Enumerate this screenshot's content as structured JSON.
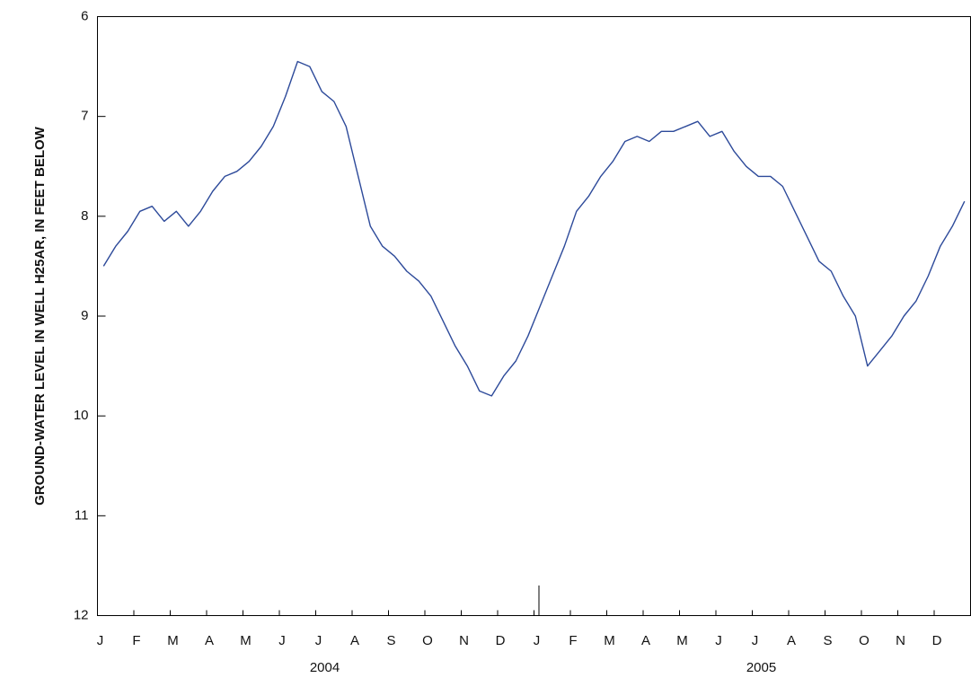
{
  "chart_data": {
    "type": "line",
    "y_label": "GROUND-WATER LEVEL IN WELL H25AR, IN FEET BELOW",
    "categories": [
      "J",
      null,
      null,
      "F",
      null,
      null,
      "M",
      null,
      null,
      "A",
      null,
      null,
      "M",
      null,
      null,
      "J",
      null,
      null,
      "J",
      null,
      null,
      "A",
      null,
      null,
      "S",
      null,
      null,
      "O",
      null,
      null,
      "N",
      null,
      null,
      "D",
      null,
      null,
      "J",
      null,
      null,
      "F",
      null,
      null,
      "M",
      null,
      null,
      "A",
      null,
      null,
      "M",
      null,
      null,
      "J",
      null,
      null,
      "J",
      null,
      null,
      "A",
      null,
      null,
      "S",
      null,
      null,
      "O",
      null,
      null,
      "N",
      null,
      null,
      "D",
      null,
      null
    ],
    "year_labels": [
      "2004",
      "2005"
    ],
    "series": [
      {
        "color": "#2d4a9a",
        "values": [
          8.5,
          8.3,
          8.15,
          7.95,
          7.9,
          8.05,
          7.95,
          8.1,
          7.95,
          7.75,
          7.6,
          7.55,
          7.45,
          7.3,
          7.1,
          6.8,
          6.45,
          6.5,
          6.75,
          6.85,
          7.1,
          7.6,
          8.1,
          8.3,
          8.4,
          8.55,
          8.65,
          8.8,
          9.05,
          9.3,
          9.5,
          9.75,
          9.8,
          9.6,
          9.45,
          9.2,
          8.9,
          8.6,
          8.3,
          7.95,
          7.8,
          7.6,
          7.45,
          7.25,
          7.2,
          7.25,
          7.15,
          7.15,
          7.1,
          7.05,
          7.2,
          7.15,
          7.35,
          7.5,
          7.6,
          7.6,
          7.7,
          7.95,
          8.2,
          8.45,
          8.55,
          8.8,
          9.0,
          9.5,
          9.35,
          9.2,
          9.0,
          8.85,
          8.6,
          8.3,
          8.1,
          7.85
        ]
      }
    ],
    "ylim": [
      12,
      6
    ],
    "yticks": [
      6,
      7,
      8,
      9,
      10,
      11,
      12
    ]
  }
}
